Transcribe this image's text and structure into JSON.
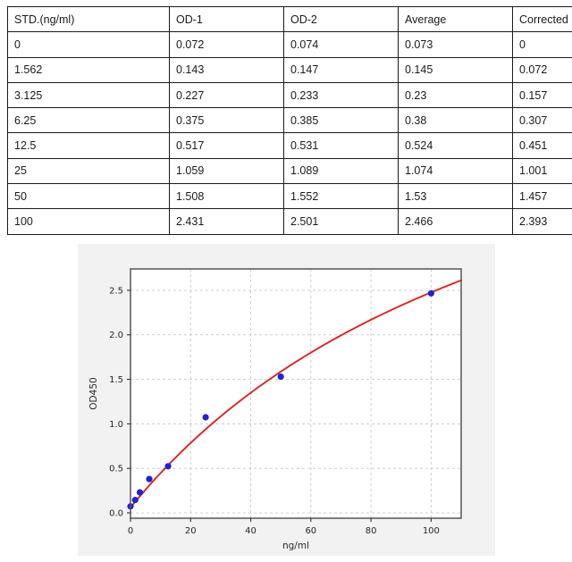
{
  "table": {
    "columns": [
      "STD.(ng/ml)",
      "OD-1",
      "OD-2",
      "Average",
      "Corrected"
    ],
    "rows": [
      [
        "0",
        "0.072",
        "0.074",
        "0.073",
        "0"
      ],
      [
        "1.562",
        "0.143",
        "0.147",
        "0.145",
        "0.072"
      ],
      [
        "3.125",
        "0.227",
        "0.233",
        "0.23",
        "0.157"
      ],
      [
        "6.25",
        "0.375",
        "0.385",
        "0.38",
        "0.307"
      ],
      [
        "12.5",
        "0.517",
        "0.531",
        "0.524",
        "0.451"
      ],
      [
        "25",
        "1.059",
        "1.089",
        "1.074",
        "1.001"
      ],
      [
        "50",
        "1.508",
        "1.552",
        "1.53",
        "1.457"
      ],
      [
        "100",
        "2.431",
        "2.501",
        "2.466",
        "2.393"
      ]
    ]
  },
  "chart_data": {
    "type": "scatter",
    "title": "",
    "xlabel": "ng/ml",
    "ylabel": "OD450",
    "xlim": [
      0,
      110
    ],
    "ylim": [
      -0.06,
      2.74
    ],
    "xticks": [
      0,
      20,
      40,
      60,
      80,
      100
    ],
    "yticks": [
      0,
      0.5,
      1,
      1.5,
      2,
      2.5
    ],
    "xtick_labels": [
      "0",
      "20",
      "40",
      "60",
      "80",
      "100"
    ],
    "ytick_labels": [
      "0.0",
      "0.5",
      "1.0",
      "1.5",
      "2.0",
      "2.5"
    ],
    "grid": true,
    "legend": "none",
    "points": [
      [
        0,
        0.073
      ],
      [
        1.562,
        0.145
      ],
      [
        3.125,
        0.23
      ],
      [
        6.25,
        0.38
      ],
      [
        12.5,
        0.524
      ],
      [
        25,
        1.074
      ],
      [
        50,
        1.53
      ],
      [
        100,
        2.466
      ]
    ],
    "fit_curve": {
      "model": "y = c + a*x/(b+x)",
      "a": 5.8,
      "b": 140,
      "c": 0.06,
      "x_range": [
        0,
        110
      ]
    },
    "colors": {
      "points": "#2121d6",
      "curve": "#dd2222",
      "grid": "#c8c8c8",
      "spine": "#555555",
      "tick": "#333333",
      "text": "#262626",
      "figure_bg": "#f2f2f2",
      "plot_bg": "#ffffff"
    }
  }
}
